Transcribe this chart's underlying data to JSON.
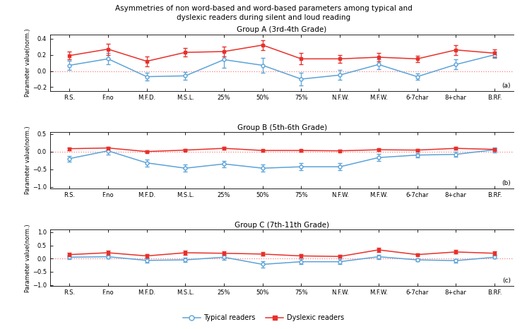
{
  "title_line1": "Asymmetries of non word-based and word-based parameters among typical and",
  "title_line2": "dyslexic readers during silent and loud reading",
  "x_labels": [
    "R.S.",
    "F.no",
    "M.F.D.",
    "M.S.L.",
    "25%",
    "50%",
    "75%",
    "N.F.W.",
    "M.F.W.",
    "6-7char",
    "8+char",
    "B.RF."
  ],
  "groups": [
    {
      "title": "Group A (3rd-4th Grade)",
      "label": "(a)",
      "ylim": [
        -0.25,
        0.45
      ],
      "yticks": [
        -0.2,
        0.0,
        0.2,
        0.4
      ],
      "typical_y": [
        0.07,
        0.15,
        -0.07,
        -0.06,
        0.14,
        0.07,
        -0.1,
        -0.05,
        0.08,
        -0.07,
        0.08,
        0.2
      ],
      "typical_err": [
        0.06,
        0.07,
        0.05,
        0.05,
        0.1,
        0.09,
        0.08,
        0.06,
        0.06,
        0.04,
        0.06,
        0.04
      ],
      "dyslexic_y": [
        0.19,
        0.27,
        0.12,
        0.23,
        0.24,
        0.32,
        0.15,
        0.15,
        0.17,
        0.15,
        0.26,
        0.22
      ],
      "dyslexic_err": [
        0.05,
        0.07,
        0.06,
        0.05,
        0.06,
        0.06,
        0.07,
        0.05,
        0.05,
        0.04,
        0.06,
        0.05
      ]
    },
    {
      "title": "Group B (5th-6th Grade)",
      "label": "(b)",
      "ylim": [
        -1.05,
        0.55
      ],
      "yticks": [
        -1.0,
        -0.5,
        0.0,
        0.5
      ],
      "typical_y": [
        -0.2,
        0.02,
        -0.32,
        -0.47,
        -0.35,
        -0.47,
        -0.43,
        -0.43,
        -0.17,
        -0.1,
        -0.08,
        0.05
      ],
      "typical_err": [
        0.08,
        0.1,
        0.1,
        0.1,
        0.09,
        0.1,
        0.1,
        0.1,
        0.1,
        0.06,
        0.07,
        0.07
      ],
      "dyslexic_y": [
        0.08,
        0.1,
        0.0,
        0.04,
        0.09,
        0.03,
        0.03,
        0.02,
        0.05,
        0.04,
        0.09,
        0.06
      ],
      "dyslexic_err": [
        0.04,
        0.04,
        0.03,
        0.03,
        0.04,
        0.03,
        0.03,
        0.03,
        0.04,
        0.03,
        0.04,
        0.04
      ]
    },
    {
      "title": "Group C (7th-11th Grade)",
      "label": "(c)",
      "ylim": [
        -1.05,
        1.1
      ],
      "yticks": [
        -1.0,
        -0.5,
        0.0,
        0.5,
        1.0
      ],
      "typical_y": [
        0.05,
        0.07,
        -0.07,
        -0.05,
        0.05,
        -0.22,
        -0.12,
        -0.12,
        0.07,
        -0.05,
        -0.08,
        0.05
      ],
      "typical_err": [
        0.08,
        0.07,
        0.08,
        0.07,
        0.1,
        0.12,
        0.1,
        0.09,
        0.08,
        0.06,
        0.07,
        0.05
      ],
      "dyslexic_y": [
        0.15,
        0.22,
        0.1,
        0.22,
        0.2,
        0.17,
        0.1,
        0.08,
        0.33,
        0.15,
        0.25,
        0.2
      ],
      "dyslexic_err": [
        0.07,
        0.08,
        0.06,
        0.07,
        0.07,
        0.07,
        0.06,
        0.05,
        0.08,
        0.05,
        0.07,
        0.06
      ]
    }
  ],
  "typical_color": "#5BA3D9",
  "dyslexic_color": "#E8302A",
  "hline_color": "#FF6666",
  "legend_typical": "Typical readers",
  "legend_dyslexic": "Dyslexic readers",
  "ylabel": "Parameter value(norm.)"
}
